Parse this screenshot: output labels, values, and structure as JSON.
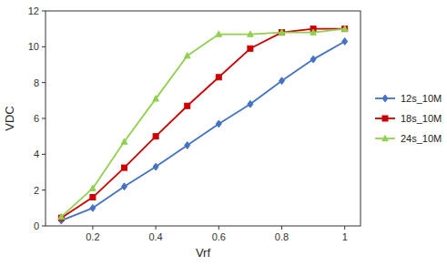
{
  "chart_data": {
    "type": "line",
    "xlabel": "Vrf",
    "ylabel": "VDC",
    "x": [
      0.1,
      0.2,
      0.3,
      0.4,
      0.5,
      0.6,
      0.7,
      0.8,
      0.9,
      1.0
    ],
    "series": [
      {
        "name": "12s_10M",
        "color": "#4472C4",
        "marker": "diamond",
        "values": [
          0.3,
          1.0,
          2.2,
          3.3,
          4.5,
          5.7,
          6.8,
          8.1,
          9.3,
          10.3
        ]
      },
      {
        "name": "18s_10M",
        "color": "#CC0000",
        "marker": "square",
        "values": [
          0.45,
          1.6,
          3.25,
          5.0,
          6.7,
          8.3,
          9.9,
          10.8,
          11.0,
          11.0
        ]
      },
      {
        "name": "24s_10M",
        "color": "#92D050",
        "marker": "triangle",
        "values": [
          0.5,
          2.1,
          4.7,
          7.1,
          9.5,
          10.7,
          10.7,
          10.8,
          10.8,
          11.0
        ]
      }
    ],
    "xlim": [
      0.05,
      1.05
    ],
    "ylim": [
      0,
      12
    ],
    "xticks": [
      0.2,
      0.4,
      0.6,
      0.8,
      1
    ],
    "yticks": [
      0,
      2,
      4,
      6,
      8,
      10,
      12
    ],
    "grid": false,
    "legend": "right"
  }
}
